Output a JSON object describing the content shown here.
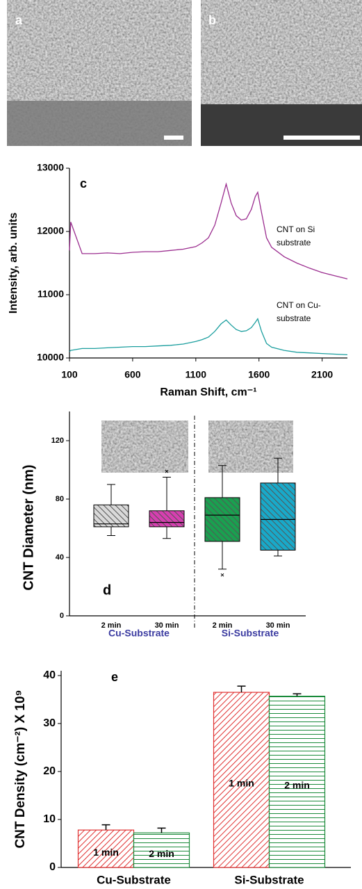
{
  "images": {
    "a_label": "a",
    "b_label": "b"
  },
  "chart_data": [
    {
      "type": "line",
      "panel_label": "c",
      "ylabel": "Intensity, arb. units",
      "xlabel": "Raman Shift, cm⁻¹",
      "xlim": [
        100,
        2300
      ],
      "xticks": [
        100,
        600,
        1100,
        1600,
        2100
      ],
      "ylim": [
        10000,
        13000
      ],
      "yticks": [
        10000,
        11000,
        12000,
        13000
      ],
      "x": [
        100,
        110,
        200,
        300,
        400,
        500,
        600,
        700,
        800,
        900,
        1000,
        1100,
        1150,
        1200,
        1250,
        1300,
        1340,
        1380,
        1420,
        1460,
        1500,
        1540,
        1570,
        1590,
        1620,
        1660,
        1700,
        1800,
        1900,
        2000,
        2100,
        2200,
        2300
      ],
      "series": [
        {
          "name": "CNT on Si substrate",
          "color": "#9b2d8f",
          "values": [
            11700,
            12150,
            11650,
            11650,
            11660,
            11650,
            11670,
            11680,
            11680,
            11700,
            11720,
            11760,
            11820,
            11900,
            12100,
            12450,
            12750,
            12450,
            12250,
            12180,
            12200,
            12350,
            12550,
            12620,
            12300,
            11900,
            11750,
            11600,
            11500,
            11420,
            11350,
            11300,
            11250
          ]
        },
        {
          "name": "CNT on Cu- substrate",
          "color": "#1a9e9e",
          "values": [
            10100,
            10120,
            10150,
            10150,
            10160,
            10170,
            10180,
            10180,
            10190,
            10200,
            10220,
            10260,
            10290,
            10330,
            10420,
            10540,
            10600,
            10520,
            10450,
            10420,
            10430,
            10480,
            10560,
            10620,
            10420,
            10230,
            10170,
            10120,
            10090,
            10080,
            10070,
            10060,
            10050
          ]
        }
      ]
    },
    {
      "type": "box",
      "panel_label": "d",
      "ylabel": "CNT Diameter (nm)",
      "ylim": [
        0,
        140
      ],
      "yticks": [
        0,
        40,
        80,
        120
      ],
      "categories": [
        "2 min",
        "30 min",
        "2 min",
        "30 min"
      ],
      "groups": [
        "Cu-Substrate",
        "Si-Substrate"
      ],
      "boxes": [
        {
          "color": "#d9d9d9",
          "whisker_low": 55,
          "q1": 61,
          "median": 63,
          "q3": 76,
          "whisker_high": 90,
          "outliers": []
        },
        {
          "color": "#d63fb0",
          "whisker_low": 53,
          "q1": 61,
          "median": 64,
          "q3": 72,
          "whisker_high": 95,
          "outliers": [
            99
          ]
        },
        {
          "color": "#1aa050",
          "whisker_low": 32,
          "q1": 51,
          "median": 69,
          "q3": 81,
          "whisker_high": 103,
          "outliers": [
            28
          ]
        },
        {
          "color": "#19a9c9",
          "whisker_low": 41,
          "q1": 45,
          "median": 66,
          "q3": 91,
          "whisker_high": 108,
          "outliers": []
        }
      ]
    },
    {
      "type": "bar",
      "panel_label": "e",
      "ylabel": "CNT Density (cm⁻²) X 10⁹",
      "ylim": [
        0,
        41
      ],
      "yticks": [
        0,
        10,
        20,
        30,
        40
      ],
      "categories": [
        "Cu-Substrate",
        "Si-Substrate"
      ],
      "series": [
        {
          "name": "1 min",
          "color": "#e03030",
          "values": [
            7.8,
            36.5
          ],
          "errors": [
            1.1,
            1.3
          ]
        },
        {
          "name": "2 min",
          "color": "#1a8a3a",
          "values": [
            7.2,
            35.7
          ],
          "errors": [
            1.0,
            0.5
          ]
        }
      ]
    }
  ]
}
